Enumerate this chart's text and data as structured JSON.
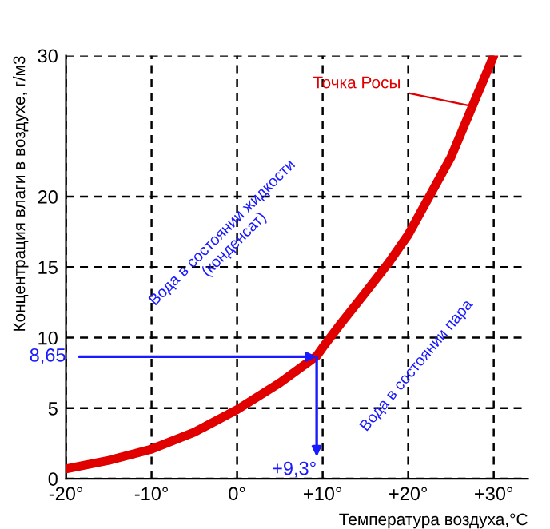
{
  "chart_data": {
    "type": "line",
    "xlabel": "Температура воздуха,°C",
    "ylabel": "Концентрация влаги в воздухе, г/м3",
    "x": [
      -20,
      -15,
      -10,
      -5,
      0,
      5,
      9.3,
      10,
      12,
      15,
      17.7,
      20,
      25,
      30
    ],
    "series": [
      {
        "color": "#e00000",
        "values": [
          0.7,
          1.3,
          2.1,
          3.3,
          4.9,
          6.8,
          8.7,
          9.3,
          10.9,
          13.2,
          15.3,
          17.3,
          22.8,
          30
        ]
      }
    ],
    "xlim": [
      -20,
      34
    ],
    "ylim": [
      0,
      30
    ],
    "xticks": [
      {
        "value": -20,
        "label": "-20°"
      },
      {
        "value": -10,
        "label": "-10°"
      },
      {
        "value": 0,
        "label": "0°"
      },
      {
        "value": 10,
        "label": "+10°"
      },
      {
        "value": 20,
        "label": "+20°"
      },
      {
        "value": 30,
        "label": "+30°"
      }
    ],
    "yticks": [
      0,
      5,
      10,
      15,
      20,
      30
    ],
    "grid": true,
    "line_style": "solid",
    "marker": "none",
    "legend": false,
    "annotations": [
      {
        "text": "8,65",
        "x": 9.3,
        "y": 8.65
      },
      {
        "text": "+9,3°",
        "x": 9.3,
        "y": 8.65
      },
      "Точка Росы",
      "Вода в состоянии жидкости\n(конденсат)",
      "Вода в состоянии пара"
    ]
  }
}
